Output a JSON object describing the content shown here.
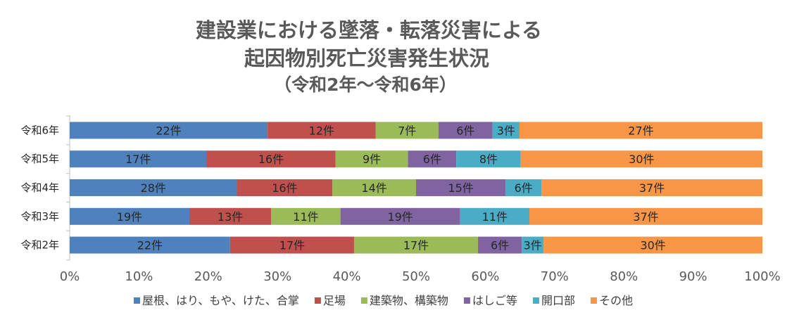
{
  "chart_data": {
    "type": "bar",
    "orientation": "horizontal",
    "stacked": "percent",
    "title": [
      "建設業における墜落・転落災害による",
      "起因物別死亡災害発生状況",
      "（令和2年～令和6年）"
    ],
    "categories": [
      "令和6年",
      "令和5年",
      "令和4年",
      "令和3年",
      "令和2年"
    ],
    "series": [
      {
        "name": "屋根、はり、もや、けた、合掌",
        "color": "#4F81BD",
        "values": [
          22,
          17,
          28,
          19,
          22
        ],
        "labels": [
          "22件",
          "17件",
          "28件",
          "19件",
          "22件"
        ]
      },
      {
        "name": "足場",
        "color": "#C0504D",
        "values": [
          12,
          16,
          16,
          13,
          17
        ],
        "labels": [
          "12件",
          "16件",
          "16件",
          "13件",
          "17件"
        ]
      },
      {
        "name": "建築物、構築物",
        "color": "#9BBB59",
        "values": [
          7,
          9,
          14,
          11,
          17
        ],
        "labels": [
          "7件",
          "9件",
          "14件",
          "11件",
          "17件"
        ]
      },
      {
        "name": "はしご等",
        "color": "#8064A2",
        "values": [
          6,
          6,
          15,
          19,
          6
        ],
        "labels": [
          "6件",
          "6件",
          "15件",
          "19件",
          "6件"
        ]
      },
      {
        "name": "開口部",
        "color": "#4BACC6",
        "values": [
          3,
          8,
          6,
          11,
          3
        ],
        "labels": [
          "3件",
          "8件",
          "6件",
          "11件",
          "3件"
        ]
      },
      {
        "name": "その他",
        "color": "#F79646",
        "values": [
          27,
          30,
          37,
          37,
          30
        ],
        "labels": [
          "27件",
          "30件",
          "37件",
          "37件",
          "30件"
        ]
      }
    ],
    "xticks": [
      "0%",
      "10%",
      "20%",
      "30%",
      "40%",
      "50%",
      "60%",
      "70%",
      "80%",
      "90%",
      "100%"
    ],
    "xlim": [
      0,
      100
    ],
    "grid": false,
    "legend_position": "bottom"
  }
}
